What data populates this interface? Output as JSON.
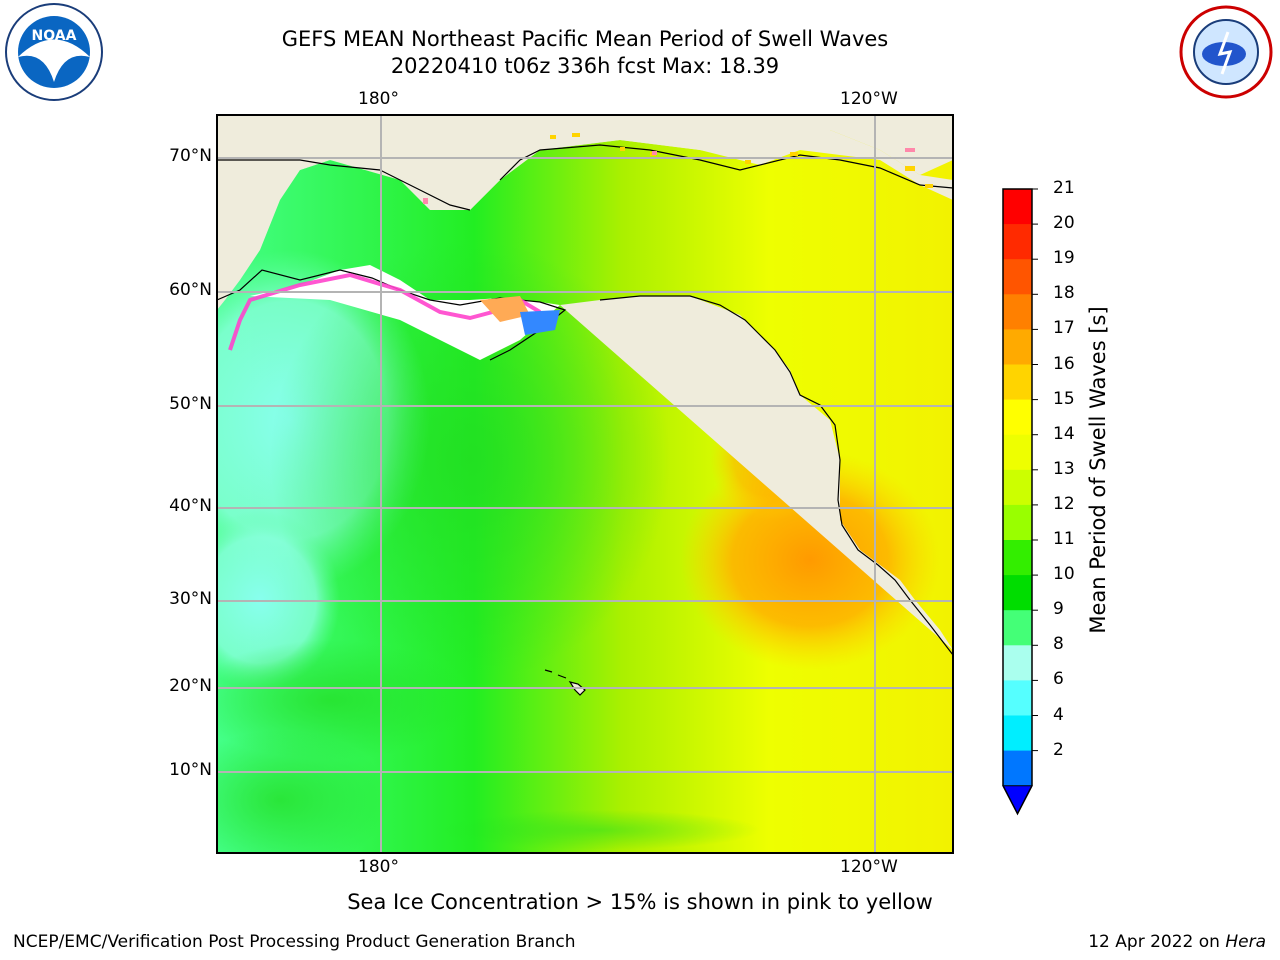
{
  "title_line1": "GEFS MEAN Northeast Pacific Mean Period of Swell Waves",
  "title_line2": "20220410 t06z 336h fcst   Max: 18.39",
  "top_axis": [
    "180°",
    "120°W"
  ],
  "bottom_axis": [
    "180°",
    "120°W"
  ],
  "lat_labels": [
    "70°N",
    "60°N",
    "50°N",
    "40°N",
    "30°N",
    "20°N",
    "10°N"
  ],
  "colorbar": {
    "label": "Mean Period of Swell Waves [s]",
    "ticks": [
      "21",
      "20",
      "19",
      "18",
      "17",
      "16",
      "15",
      "14",
      "13",
      "12",
      "11",
      "10",
      "9",
      "8",
      "6",
      "4",
      "2"
    ],
    "colors": [
      "#ff0000",
      "#ff2a00",
      "#ff5500",
      "#ff8000",
      "#ffaa00",
      "#ffd400",
      "#ffff00",
      "#eeff00",
      "#ccff00",
      "#99ff00",
      "#33ee00",
      "#00dd00",
      "#44ff77",
      "#aaffee",
      "#55ffff",
      "#00eeff",
      "#0077ff"
    ],
    "extend_color": "#0000ff"
  },
  "note": "Sea Ice Concentration > 15% is shown in pink to yellow",
  "footer_left": "NCEP/EMC/Verification Post Processing Product Generation Branch",
  "footer_right_prefix": "12 Apr 2022 on ",
  "footer_right_machine": "Hera",
  "logos": {
    "left": {
      "name": "noaa-logo",
      "text": "NOAA"
    },
    "right": {
      "name": "nws-logo",
      "text": "NATIONAL WEATHER SERVICE"
    }
  },
  "colors": {
    "land": "#efecdc",
    "grid": "#b4b4b4",
    "frame": "#000000"
  }
}
